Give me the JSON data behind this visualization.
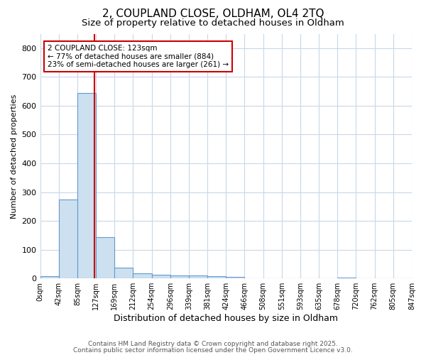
{
  "title": "2, COUPLAND CLOSE, OLDHAM, OL4 2TQ",
  "subtitle": "Size of property relative to detached houses in Oldham",
  "xlabel": "Distribution of detached houses by size in Oldham",
  "ylabel": "Number of detached properties",
  "bar_values": [
    8,
    275,
    645,
    143,
    37,
    18,
    12,
    10,
    10,
    8,
    5,
    0,
    0,
    0,
    0,
    0,
    4,
    0,
    0,
    0
  ],
  "bin_labels": [
    "0sqm",
    "42sqm",
    "85sqm",
    "127sqm",
    "169sqm",
    "212sqm",
    "254sqm",
    "296sqm",
    "339sqm",
    "381sqm",
    "424sqm",
    "466sqm",
    "508sqm",
    "551sqm",
    "593sqm",
    "635sqm",
    "678sqm",
    "720sqm",
    "762sqm",
    "805sqm",
    "847sqm"
  ],
  "bar_color": "#cce0f0",
  "bar_edge_color": "#6699cc",
  "vline_color": "#cc0000",
  "annotation_text": "2 COUPLAND CLOSE: 123sqm\n← 77% of detached houses are smaller (884)\n23% of semi-detached houses are larger (261) →",
  "annotation_box_color": "#ffffff",
  "annotation_box_edge": "#cc0000",
  "ylim": [
    0,
    850
  ],
  "yticks": [
    0,
    100,
    200,
    300,
    400,
    500,
    600,
    700,
    800
  ],
  "footer_line1": "Contains HM Land Registry data © Crown copyright and database right 2025.",
  "footer_line2": "Contains public sector information licensed under the Open Government Licence v3.0.",
  "bg_color": "#ffffff",
  "plot_bg_color": "#ffffff",
  "grid_color": "#c8d8e8",
  "title_fontsize": 11,
  "subtitle_fontsize": 9.5
}
